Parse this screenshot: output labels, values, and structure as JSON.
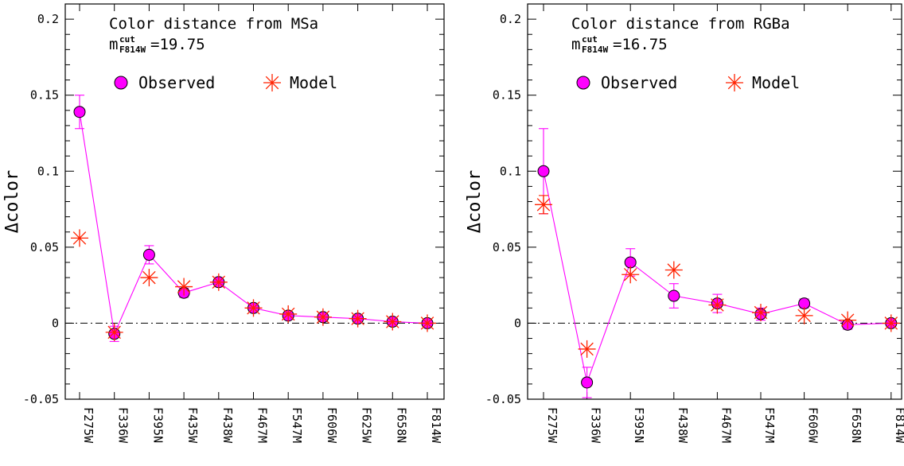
{
  "chart_data": [
    {
      "type": "scatter",
      "title": "Color distance from MSa",
      "cut_label": {
        "symbol": "m",
        "sup": "cut",
        "sub": "F814W",
        "value": "=19.75"
      },
      "ylabel": "Δcolor",
      "ylim": [
        -0.05,
        0.21
      ],
      "yticks": [
        "-0.05",
        "0",
        "0.05",
        "0.1",
        "0.15",
        "0.2"
      ],
      "ytick_values": [
        -0.05,
        0,
        0.05,
        0.1,
        0.15,
        0.2
      ],
      "categories": [
        "F275W",
        "F336W",
        "F395N",
        "F435W",
        "F438W",
        "F467M",
        "F547M",
        "F606W",
        "F625W",
        "F658N",
        "F814W"
      ],
      "legend": {
        "observed": "Observed",
        "model": "Model"
      },
      "series": [
        {
          "name": "Observed",
          "values": [
            0.139,
            -0.007,
            0.045,
            0.02,
            0.027,
            0.01,
            0.005,
            0.004,
            0.003,
            0.001,
            0.0
          ],
          "errors": [
            0.011,
            0.005,
            0.006,
            0.003,
            0.003,
            0.002,
            0.002,
            0.002,
            0.002,
            0.002,
            0.001
          ]
        },
        {
          "name": "Model",
          "values": [
            0.056,
            -0.006,
            0.03,
            0.024,
            0.027,
            0.01,
            0.006,
            0.004,
            0.003,
            0.001,
            0.0
          ]
        }
      ],
      "zero_line": true,
      "colors": {
        "observed_fill": "#ff00ff",
        "line": "#ff00ff",
        "model": "#ff2200"
      }
    },
    {
      "type": "scatter",
      "title": "Color distance from RGBa",
      "cut_label": {
        "symbol": "m",
        "sup": "cut",
        "sub": "F814W",
        "value": "=16.75"
      },
      "ylabel": "Δcolor",
      "ylim": [
        -0.05,
        0.21
      ],
      "yticks": [
        "-0.05",
        "0",
        "0.05",
        "0.1",
        "0.15",
        "0.2"
      ],
      "ytick_values": [
        -0.05,
        0,
        0.05,
        0.1,
        0.15,
        0.2
      ],
      "categories": [
        "F275W",
        "F336W",
        "F395N",
        "F438W",
        "F467M",
        "F547M",
        "F606W",
        "F658N",
        "F814W"
      ],
      "legend": {
        "observed": "Observed",
        "model": "Model"
      },
      "series": [
        {
          "name": "Observed",
          "values": [
            0.1,
            -0.039,
            0.04,
            0.018,
            0.013,
            0.006,
            0.013,
            -0.001,
            0.0
          ],
          "errors": [
            0.028,
            0.01,
            0.009,
            0.008,
            0.006,
            0.004,
            0.003,
            0.003,
            0.001
          ]
        },
        {
          "name": "Model",
          "values": [
            0.078,
            -0.017,
            0.032,
            0.035,
            0.012,
            0.007,
            0.005,
            0.002,
            0.0
          ],
          "errors": [
            0.006,
            0.0,
            0.0,
            0.0,
            0.0,
            0.0,
            0.0,
            0.0,
            0.0
          ]
        }
      ],
      "zero_line": true,
      "colors": {
        "observed_fill": "#ff00ff",
        "line": "#ff00ff",
        "model": "#ff2200"
      }
    }
  ]
}
